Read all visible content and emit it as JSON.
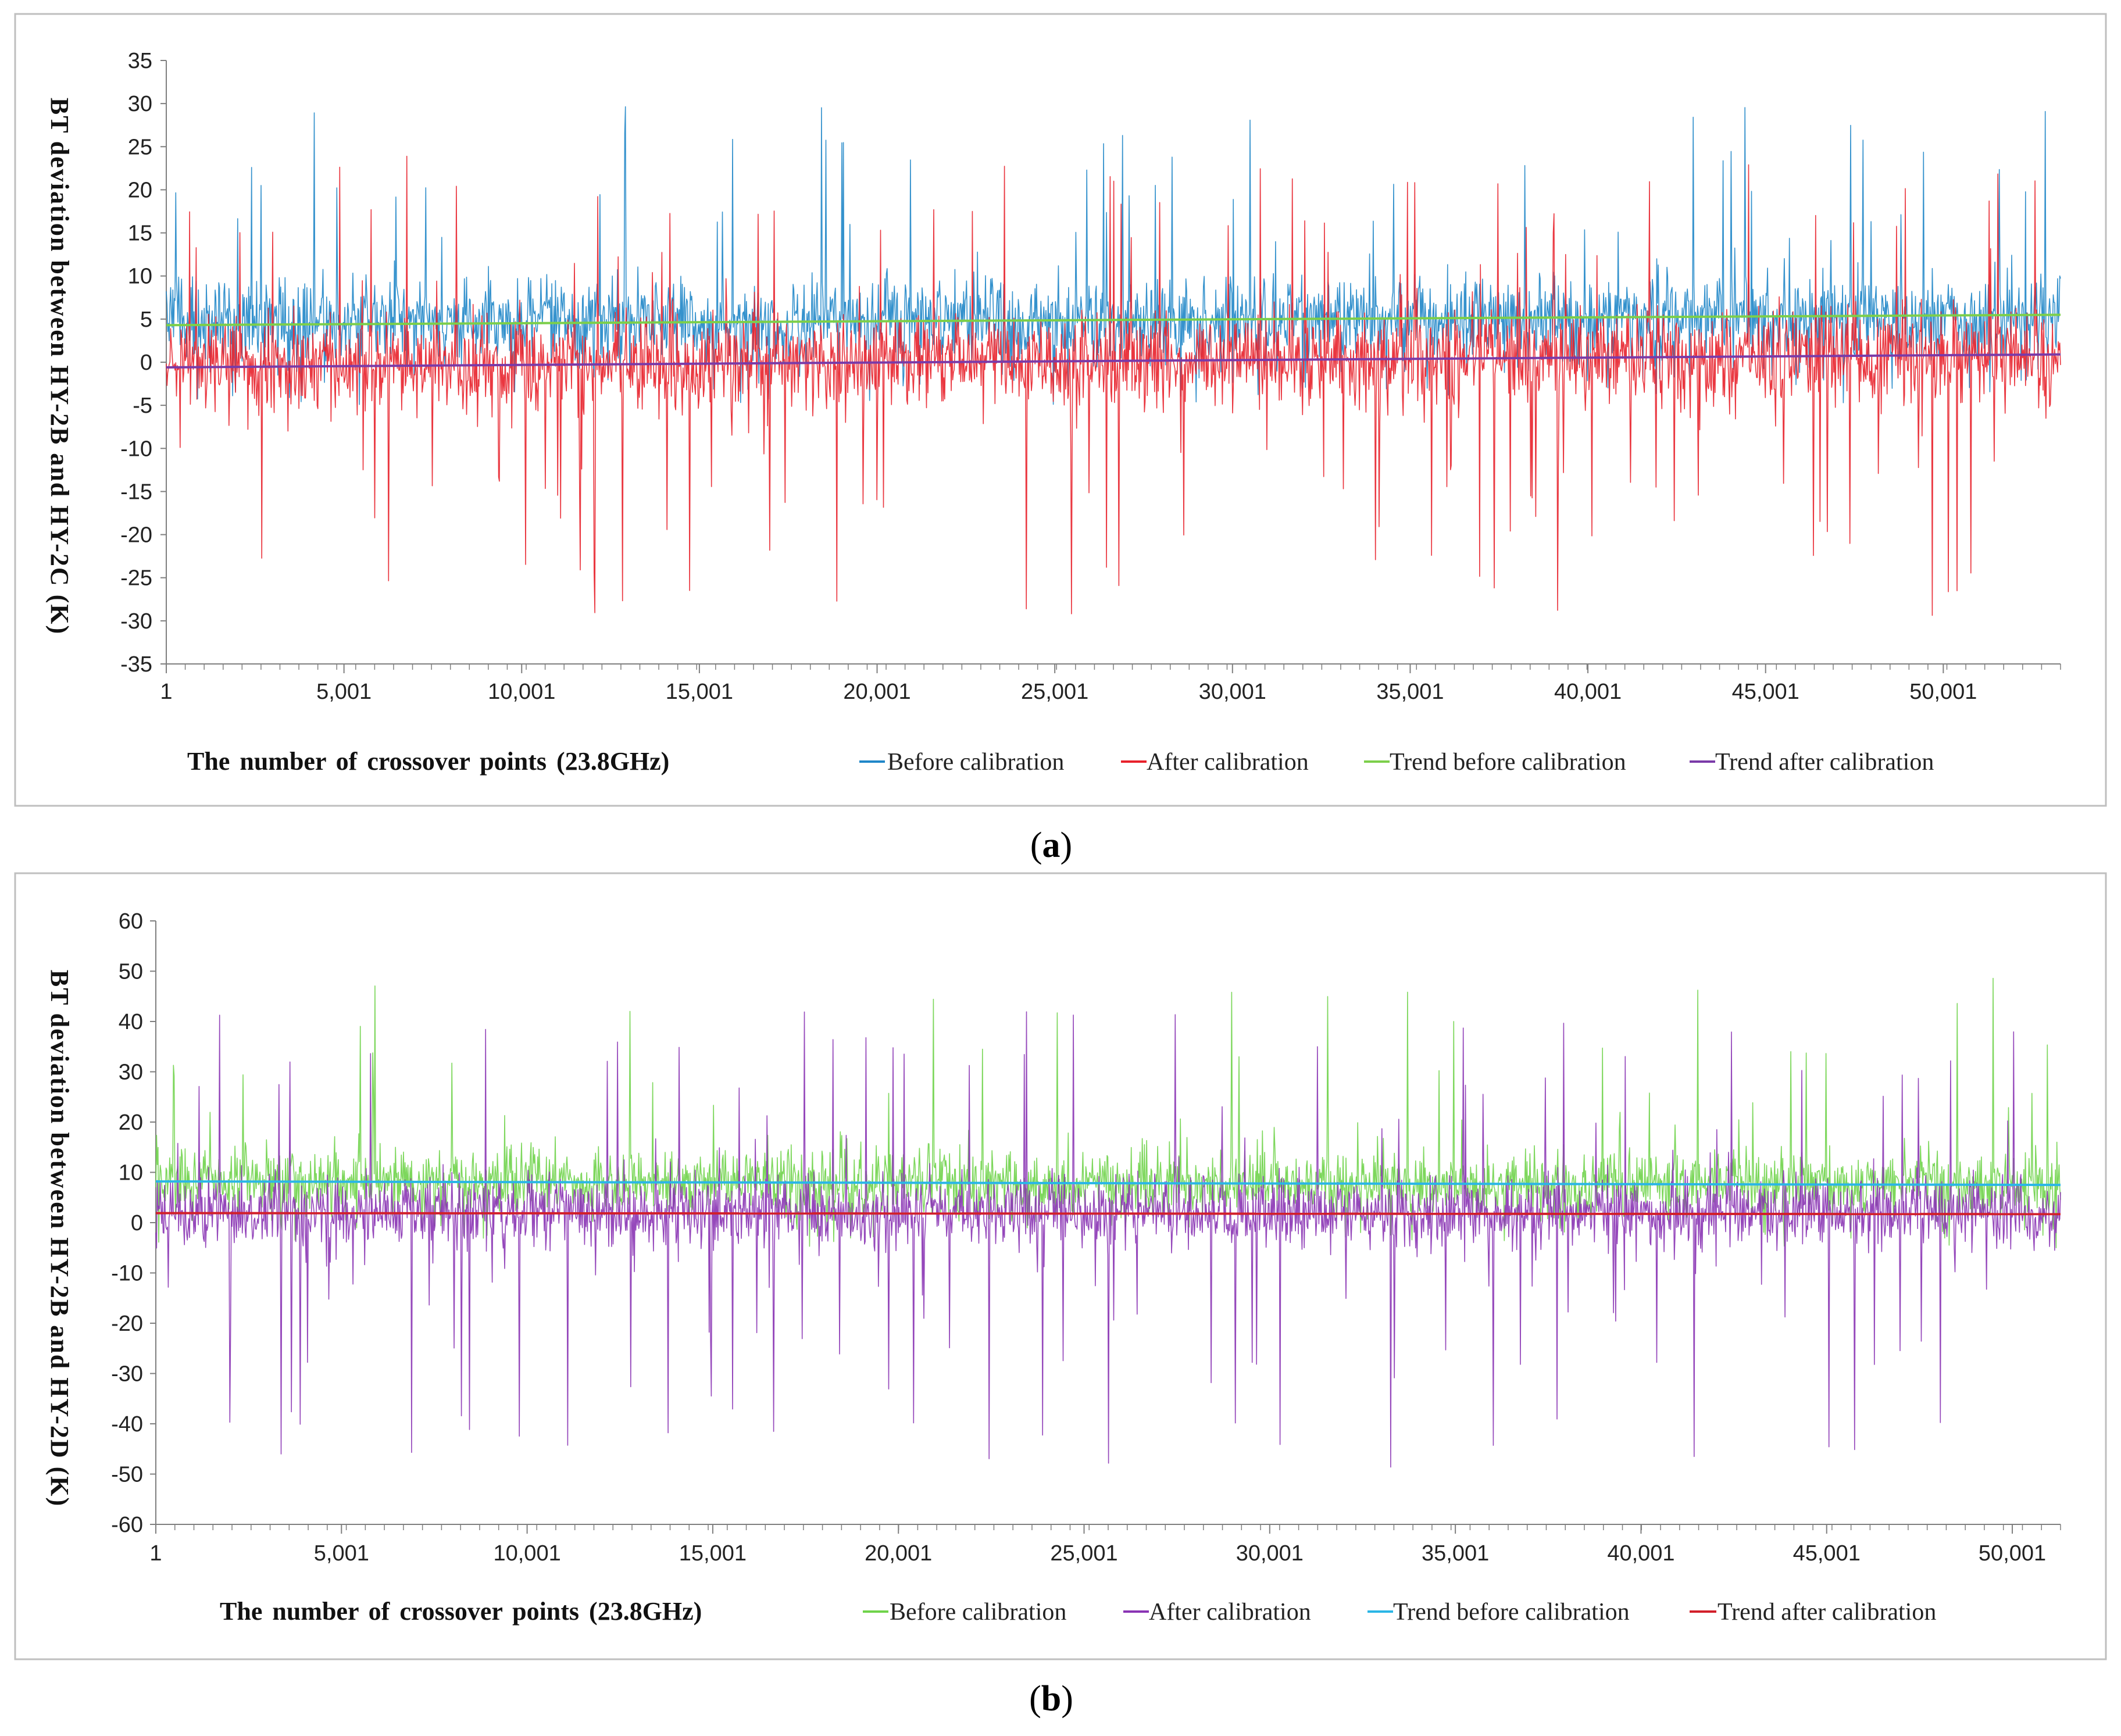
{
  "colors": {
    "a_before": "#1f86c8",
    "a_after": "#e8212b",
    "a_trend_before": "#7ccf4a",
    "a_trend_after": "#7a3aa8",
    "b_before": "#6fd34a",
    "b_after": "#8a34b4",
    "b_trend_before": "#2ab6e6",
    "b_trend_after": "#d21f2a",
    "frame": "#bfbfbf",
    "axis": "#7f7f7f"
  },
  "chart_data": [
    {
      "id": "a",
      "type": "line",
      "caption_open": "(",
      "caption_letter": "a",
      "caption_close": ")",
      "ylabel": "BT  deviation  between  HY-2B  and  HY-2C  (K)",
      "xlabel": "The  number  of  crossover  points  (23.8GHz)",
      "ylim": [
        -35,
        35
      ],
      "yticks": [
        35,
        30,
        25,
        20,
        15,
        10,
        5,
        0,
        -5,
        -10,
        -15,
        -20,
        -25,
        -30,
        -35
      ],
      "xlim": [
        1,
        53300
      ],
      "xtick_values": [
        1,
        5001,
        10001,
        15001,
        20001,
        25001,
        30001,
        35001,
        40001,
        45001,
        50001
      ],
      "xtick_labels": [
        "1",
        "5,001",
        "10,001",
        "15,001",
        "20,001",
        "25,001",
        "30,001",
        "35,001",
        "40,001",
        "45,001",
        "50,001"
      ],
      "legend": [
        "Before calibration",
        "After calibration",
        "Trend before calibration",
        "Trend after calibration"
      ],
      "series": [
        {
          "name": "Before calibration",
          "kind": "noise",
          "color": "#1f86c8",
          "base": 4.7,
          "base_end": 5.2,
          "sd": 2.4,
          "spike_max": 30,
          "spike_min": -5,
          "opacity": 0.9
        },
        {
          "name": "After calibration",
          "kind": "noise",
          "color": "#e8212b",
          "base": -0.4,
          "base_end": 0.8,
          "sd": 2.6,
          "spike_max": 24,
          "spike_min": -30,
          "opacity": 0.9
        },
        {
          "name": "Trend before calibration",
          "kind": "trend",
          "color": "#7ccf4a",
          "x": [
            1,
            53300
          ],
          "y": [
            4.3,
            5.5
          ]
        },
        {
          "name": "Trend after calibration",
          "kind": "trend",
          "color": "#7a3aa8",
          "x": [
            1,
            53300
          ],
          "y": [
            -0.6,
            0.9
          ]
        }
      ]
    },
    {
      "id": "b",
      "type": "line",
      "caption_open": "(",
      "caption_letter": "b",
      "caption_close": ")",
      "ylabel": "BT  deviation  between  HY-2B  and  HY-2D  (K)",
      "xlabel": "The  number  of  crossover  points  (23.8GHz)",
      "ylim": [
        -60,
        60
      ],
      "yticks": [
        60,
        50,
        40,
        30,
        20,
        10,
        0,
        -10,
        -20,
        -30,
        -40,
        -50,
        -60
      ],
      "xlim": [
        1,
        51300
      ],
      "xtick_values": [
        1,
        5001,
        10001,
        15001,
        20001,
        25001,
        30001,
        35001,
        40001,
        45001,
        50001
      ],
      "xtick_labels": [
        "1",
        "5,001",
        "10,001",
        "15,001",
        "20,001",
        "25,001",
        "30,001",
        "35,001",
        "40,001",
        "45,001",
        "50,001"
      ],
      "legend": [
        "Before calibration",
        "After calibration",
        "Trend before calibration",
        "Trend after calibration"
      ],
      "series": [
        {
          "name": "Before calibration",
          "kind": "noise",
          "color": "#6fd34a",
          "base": 8.2,
          "base_end": 7.6,
          "sd": 3.2,
          "spike_max": 49,
          "spike_min": -5,
          "opacity": 0.9
        },
        {
          "name": "After calibration",
          "kind": "noise",
          "color": "#8a34b4",
          "base": 2.0,
          "base_end": 1.8,
          "sd": 3.4,
          "spike_max": 42,
          "spike_min": -49,
          "opacity": 0.9
        },
        {
          "name": "Trend before calibration",
          "kind": "trend",
          "color": "#2ab6e6",
          "x": [
            1,
            51300
          ],
          "y": [
            8.2,
            7.5
          ]
        },
        {
          "name": "Trend after calibration",
          "kind": "trend",
          "color": "#d21f2a",
          "x": [
            1,
            51300
          ],
          "y": [
            1.9,
            1.7
          ]
        }
      ]
    }
  ]
}
